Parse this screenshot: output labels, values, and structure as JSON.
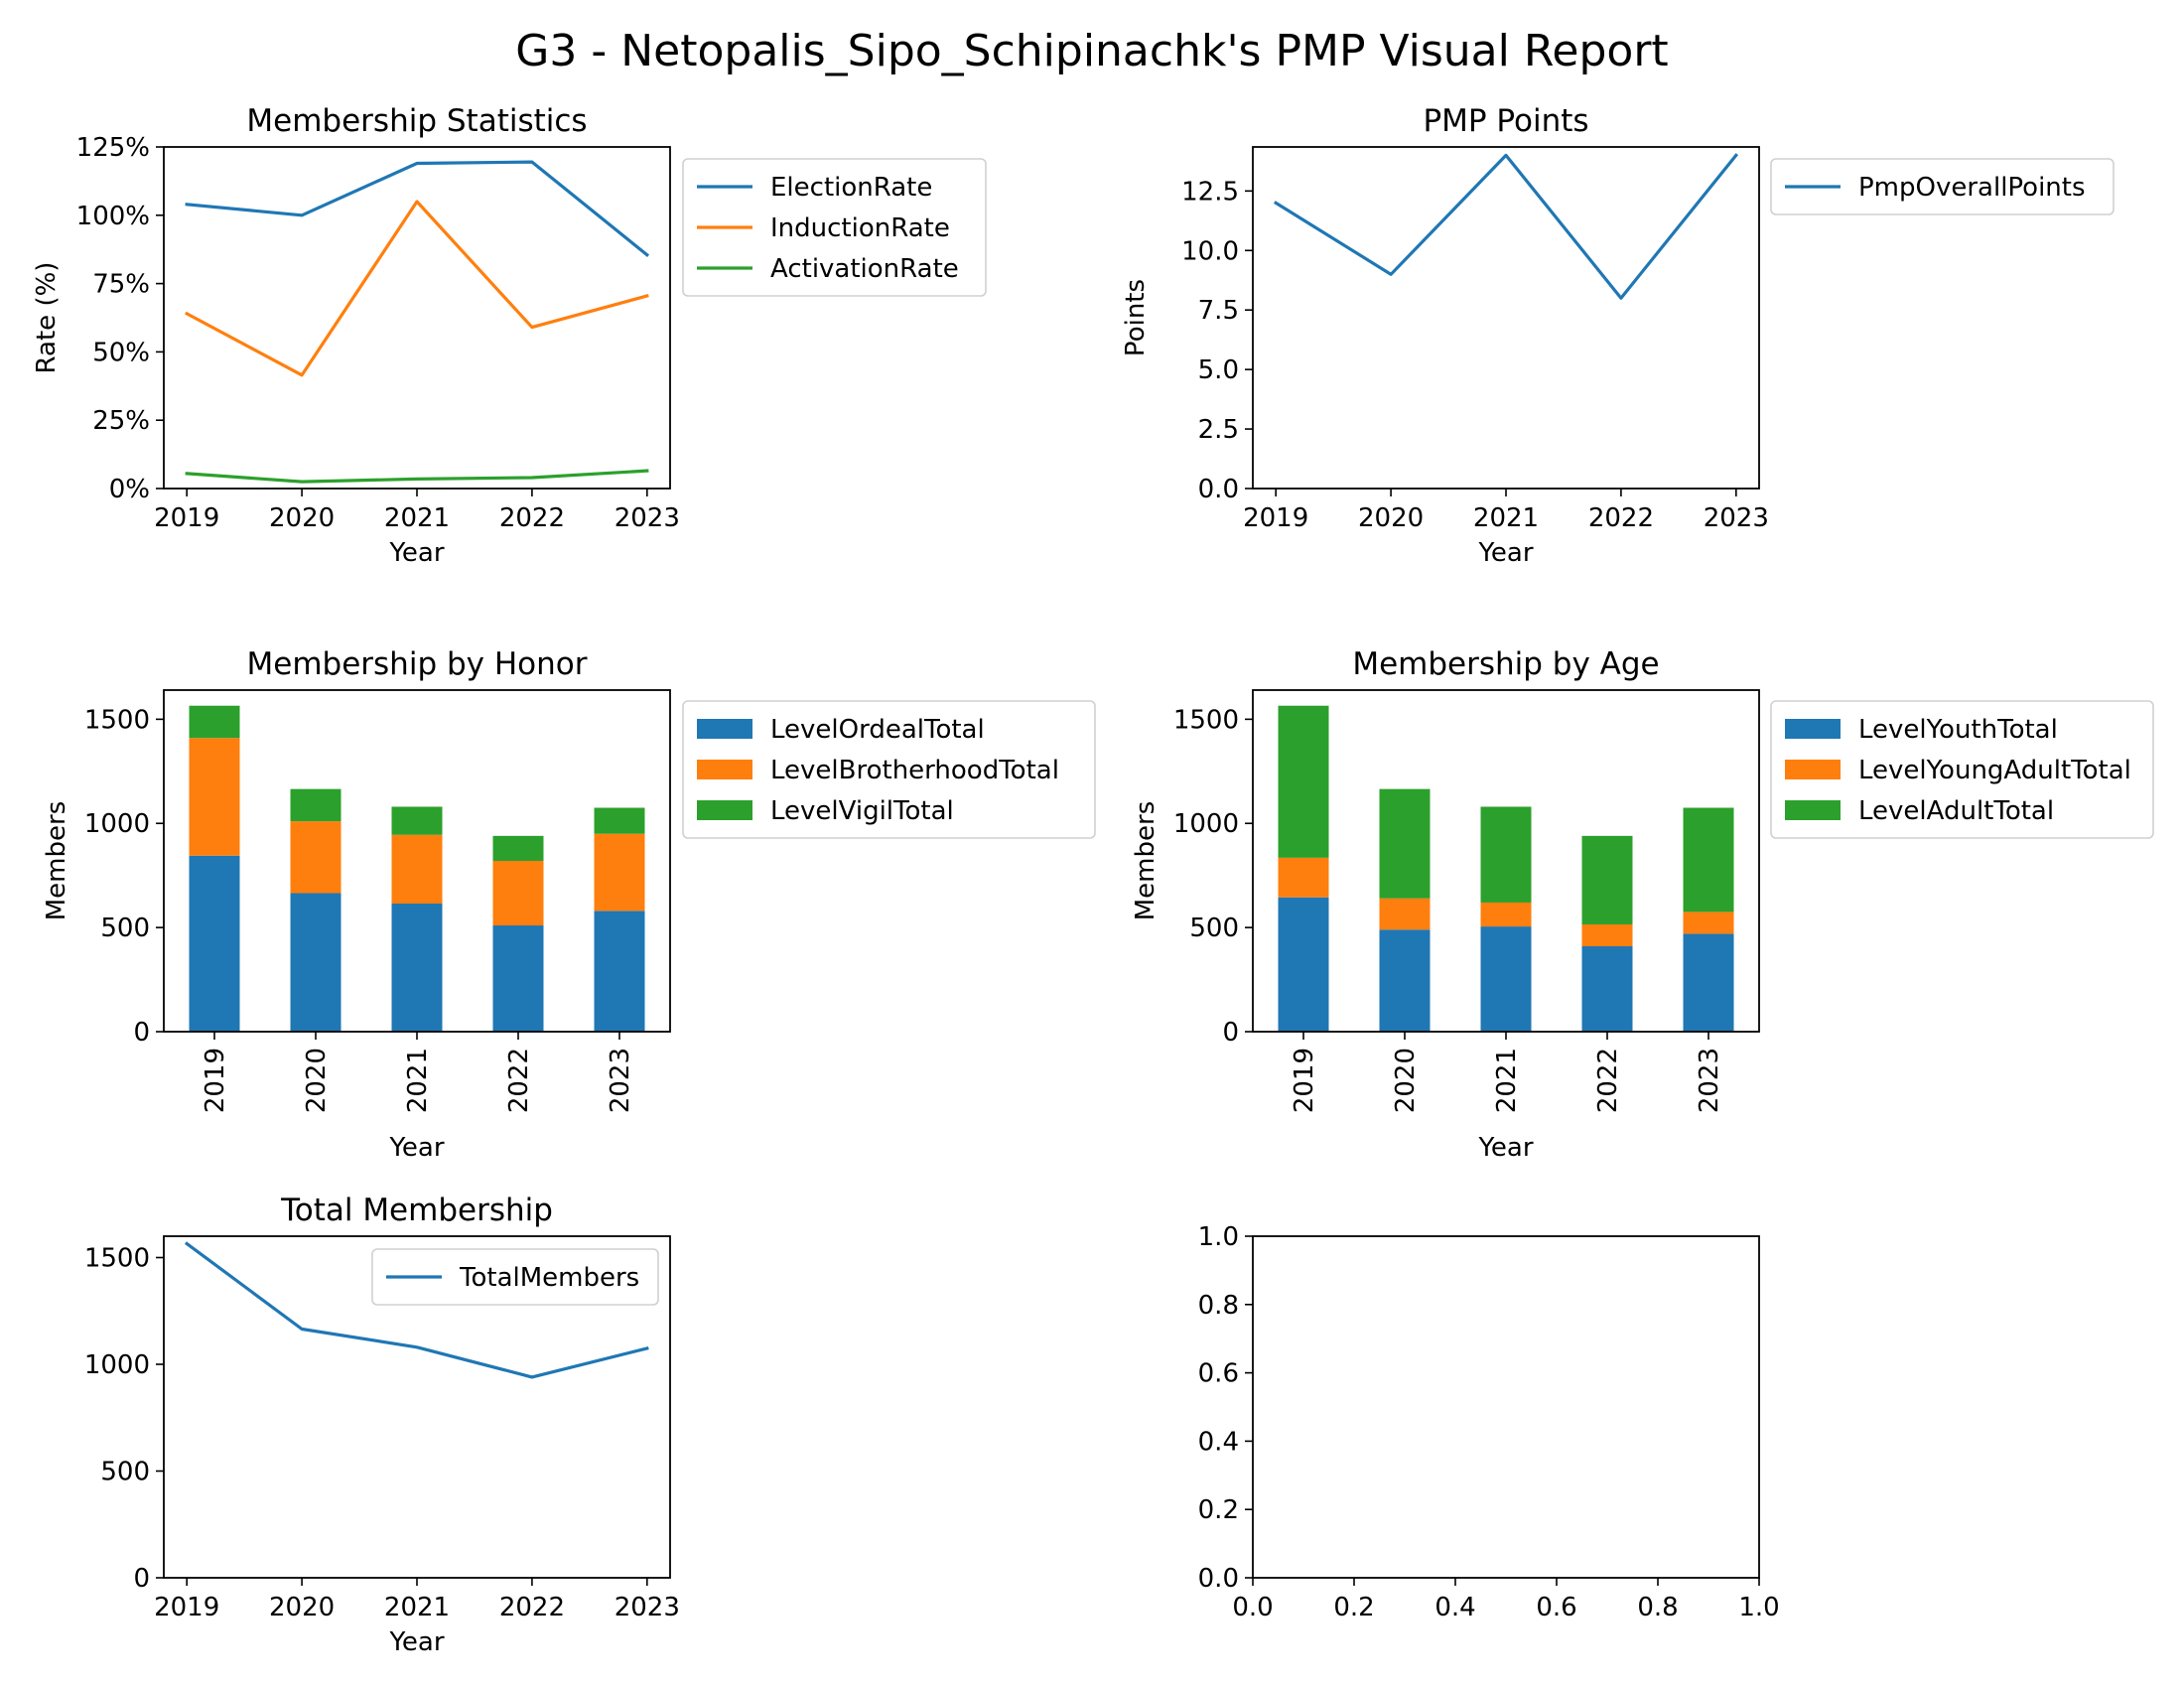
{
  "suptitle": "G3 - Netopalis_Sipo_Schipinachk's PMP Visual Report",
  "colors": {
    "blue": "#1f77b4",
    "orange": "#ff7f0e",
    "green": "#2ca02c"
  },
  "chart_data": [
    {
      "id": "membership-statistics",
      "type": "line",
      "title": "Membership Statistics",
      "xlabel": "Year",
      "ylabel": "Rate (%)",
      "x": [
        "2019",
        "2020",
        "2021",
        "2022",
        "2023"
      ],
      "ylim": [
        0,
        1.25
      ],
      "yticks": [
        0,
        0.25,
        0.5,
        0.75,
        1.0,
        1.25
      ],
      "ytick_labels": [
        "0%",
        "25%",
        "50%",
        "75%",
        "100%",
        "125%"
      ],
      "legend": "outside-right",
      "series": [
        {
          "name": "ElectionRate",
          "color": "#1f77b4",
          "values": [
            1.04,
            1.0,
            1.19,
            1.195,
            0.855
          ]
        },
        {
          "name": "InductionRate",
          "color": "#ff7f0e",
          "values": [
            0.64,
            0.415,
            1.05,
            0.59,
            0.705
          ]
        },
        {
          "name": "ActivationRate",
          "color": "#2ca02c",
          "values": [
            0.055,
            0.025,
            0.035,
            0.04,
            0.065
          ]
        }
      ]
    },
    {
      "id": "pmp-points",
      "type": "line",
      "title": "PMP Points",
      "xlabel": "Year",
      "ylabel": "Points",
      "x": [
        "2019",
        "2020",
        "2021",
        "2022",
        "2023"
      ],
      "ylim": [
        0,
        14.35
      ],
      "yticks": [
        0,
        2.5,
        5,
        7.5,
        10,
        12.5
      ],
      "ytick_labels": [
        "0.0",
        "2.5",
        "5.0",
        "7.5",
        "10.0",
        "12.5"
      ],
      "legend": "outside-right",
      "series": [
        {
          "name": "PmpOverallPoints",
          "color": "#1f77b4",
          "values": [
            12,
            9,
            14,
            8,
            14
          ]
        }
      ]
    },
    {
      "id": "membership-by-honor",
      "type": "bar",
      "stacked": true,
      "title": "Membership by Honor",
      "xlabel": "Year",
      "ylabel": "Members",
      "categories": [
        "2019",
        "2020",
        "2021",
        "2022",
        "2023"
      ],
      "ylim": [
        0,
        1640
      ],
      "yticks": [
        0,
        500,
        1000,
        1500
      ],
      "ytick_labels": [
        "0",
        "500",
        "1000",
        "1500"
      ],
      "legend": "outside-right",
      "series": [
        {
          "name": "LevelOrdealTotal",
          "color": "#1f77b4",
          "values": [
            845,
            665,
            615,
            510,
            580
          ]
        },
        {
          "name": "LevelBrotherhoodTotal",
          "color": "#ff7f0e",
          "values": [
            565,
            345,
            330,
            310,
            370
          ]
        },
        {
          "name": "LevelVigilTotal",
          "color": "#2ca02c",
          "values": [
            155,
            155,
            135,
            120,
            125
          ]
        }
      ]
    },
    {
      "id": "membership-by-age",
      "type": "bar",
      "stacked": true,
      "title": "Membership by Age",
      "xlabel": "Year",
      "ylabel": "Members",
      "categories": [
        "2019",
        "2020",
        "2021",
        "2022",
        "2023"
      ],
      "ylim": [
        0,
        1640
      ],
      "yticks": [
        0,
        500,
        1000,
        1500
      ],
      "ytick_labels": [
        "0",
        "500",
        "1000",
        "1500"
      ],
      "legend": "outside-right",
      "series": [
        {
          "name": "LevelYouthTotal",
          "color": "#1f77b4",
          "values": [
            645,
            490,
            505,
            410,
            470
          ]
        },
        {
          "name": "LevelYoungAdultTotal",
          "color": "#ff7f0e",
          "values": [
            190,
            150,
            115,
            105,
            105
          ]
        },
        {
          "name": "LevelAdultTotal",
          "color": "#2ca02c",
          "values": [
            730,
            525,
            460,
            425,
            500
          ]
        }
      ]
    },
    {
      "id": "total-membership",
      "type": "line",
      "title": "Total Membership",
      "xlabel": "Year",
      "ylabel": "",
      "x": [
        "2019",
        "2020",
        "2021",
        "2022",
        "2023"
      ],
      "ylim": [
        0,
        1600
      ],
      "yticks": [
        0,
        500,
        1000,
        1500
      ],
      "ytick_labels": [
        "0",
        "500",
        "1000",
        "1500"
      ],
      "legend": "upper-right",
      "series": [
        {
          "name": "TotalMembers",
          "color": "#1f77b4",
          "values": [
            1565,
            1165,
            1080,
            940,
            1075
          ]
        }
      ]
    },
    {
      "id": "empty-axes",
      "type": "line",
      "title": "",
      "xlabel": "",
      "ylabel": "",
      "xlim": [
        0,
        1
      ],
      "ylim": [
        0,
        1
      ],
      "xticks": [
        0,
        0.2,
        0.4,
        0.6,
        0.8,
        1.0
      ],
      "xtick_labels": [
        "0.0",
        "0.2",
        "0.4",
        "0.6",
        "0.8",
        "1.0"
      ],
      "yticks": [
        0,
        0.2,
        0.4,
        0.6,
        0.8,
        1.0
      ],
      "ytick_labels": [
        "0.0",
        "0.2",
        "0.4",
        "0.6",
        "0.8",
        "1.0"
      ],
      "series": []
    }
  ]
}
